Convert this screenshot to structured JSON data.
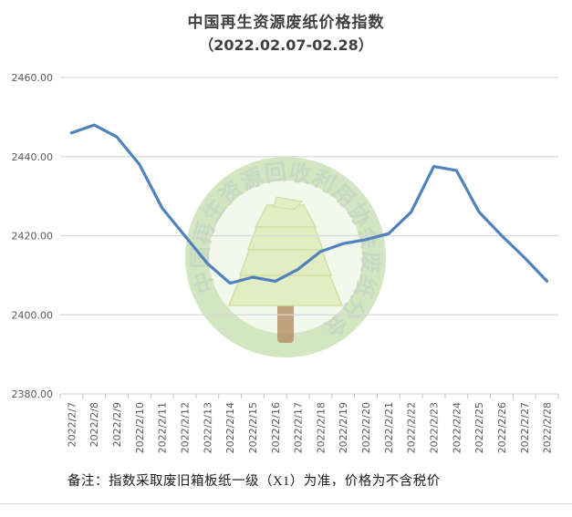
{
  "title": {
    "line1": "中国再生资源废纸价格指数",
    "line2": "（2022.02.07-02.28）"
  },
  "note": "备注：指数采取废旧箱板纸一级（X1）为准，价格为不含税价",
  "watermark": {
    "text": "中国再生资源回收利用协会废纸分会",
    "ring_color": "#d2e6c1",
    "inner_fill": "#f2f8ec",
    "text_color": "#c9d8c2",
    "tree_fill": "#e3edc2",
    "tree_edge": "#cfe0a6",
    "trunk_color": "#b38c65"
  },
  "colors": {
    "line": "#4f81bd",
    "grid": "#d9d9d9",
    "axis_text": "#595959",
    "tick": "#bfbfbf",
    "title_text": "#404040"
  },
  "chart_data": {
    "type": "line",
    "title": "中国再生资源废纸价格指数（2022.02.07-02.28）",
    "xlabel": "",
    "ylabel": "",
    "x": [
      "2022/2/7",
      "2022/2/8",
      "2022/2/9",
      "2022/2/10",
      "2022/2/11",
      "2022/2/12",
      "2022/2/13",
      "2022/2/14",
      "2022/2/15",
      "2022/2/16",
      "2022/2/17",
      "2022/2/18",
      "2022/2/19",
      "2022/2/20",
      "2022/2/21",
      "2022/2/22",
      "2022/2/23",
      "2022/2/24",
      "2022/2/25",
      "2022/2/26",
      "2022/2/27",
      "2022/2/28"
    ],
    "series": [
      {
        "name": "废纸价格指数",
        "values": [
          2446,
          2448,
          2445,
          2438,
          2427,
          2420,
          2413,
          2408,
          2409.5,
          2408.5,
          2411.5,
          2416,
          2418,
          2419,
          2420.5,
          2426,
          2437.5,
          2436.5,
          2426,
          2420,
          2414.5,
          2408.5
        ]
      }
    ],
    "ylim": [
      2380,
      2460
    ],
    "ytick_step": 20,
    "ytick_labels": [
      "2380.00",
      "2400.00",
      "2420.00",
      "2440.00",
      "2460.00"
    ],
    "grid": "horizontal",
    "legend": "none"
  }
}
